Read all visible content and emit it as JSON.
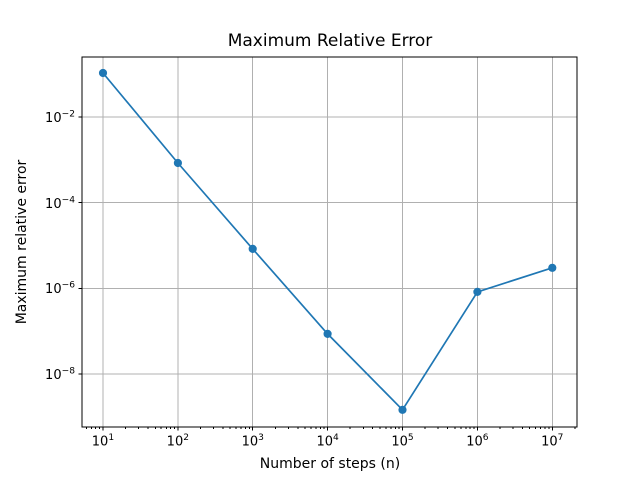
{
  "chart_data": {
    "type": "line",
    "title": "Maximum Relative Error",
    "xlabel": "Number of steps (n)",
    "ylabel": "Maximum relative error",
    "x_scale": "log",
    "y_scale": "log",
    "x": [
      10,
      100,
      1000,
      10000,
      100000,
      1000000,
      10000000
    ],
    "y": [
      0.106,
      0.00084,
      8.3e-06,
      8.6e-08,
      1.45e-09,
      8.2e-07,
      3e-06
    ],
    "xlim": [
      5.2,
      21400000
    ],
    "ylim": [
      5.8e-10,
      0.25
    ],
    "xlim_log": [
      0.72,
      7.33
    ],
    "ylim_log": [
      -9.24,
      -0.6
    ],
    "x_ticks": [
      {
        "log": 1,
        "base": "10",
        "exp": "1"
      },
      {
        "log": 2,
        "base": "10",
        "exp": "2"
      },
      {
        "log": 3,
        "base": "10",
        "exp": "3"
      },
      {
        "log": 4,
        "base": "10",
        "exp": "4"
      },
      {
        "log": 5,
        "base": "10",
        "exp": "5"
      },
      {
        "log": 6,
        "base": "10",
        "exp": "6"
      },
      {
        "log": 7,
        "base": "10",
        "exp": "7"
      }
    ],
    "y_ticks": [
      {
        "log": -2,
        "base": "10",
        "exp": "−2"
      },
      {
        "log": -4,
        "base": "10",
        "exp": "−4"
      },
      {
        "log": -6,
        "base": "10",
        "exp": "−6"
      },
      {
        "log": -8,
        "base": "10",
        "exp": "−8"
      }
    ],
    "grid": true,
    "legend": false,
    "line_color": "#1f77b4",
    "marker": "circle"
  },
  "colors": {
    "background": "#ffffff",
    "grid": "#b0b0b0",
    "spine": "#000000",
    "text": "#000000"
  }
}
